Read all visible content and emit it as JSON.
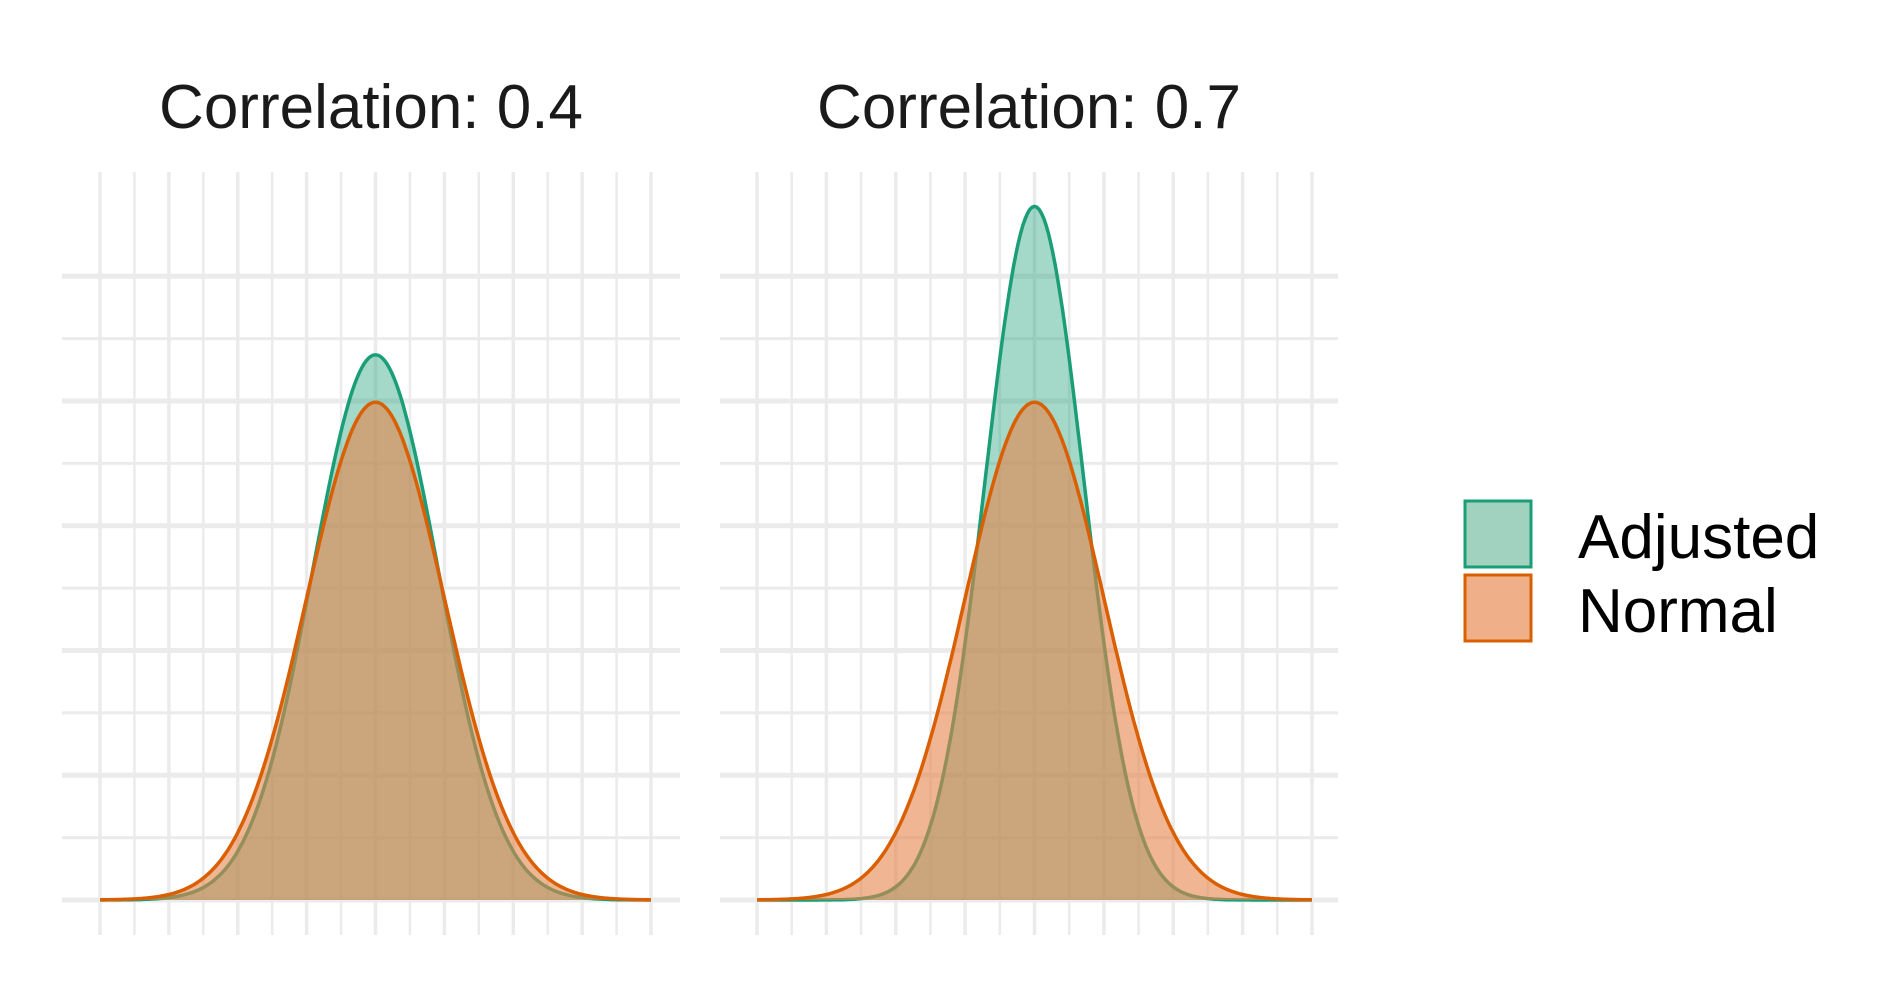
{
  "chart_data": [
    {
      "type": "area",
      "title": "Correlation: 0.4",
      "xlabel": "",
      "ylabel": "",
      "xlim": [
        -4,
        4
      ],
      "ylim": [
        0,
        0.6
      ],
      "grid": true,
      "x_ticks": [
        -4,
        -3,
        -2,
        -1,
        0,
        1,
        2,
        3,
        4
      ],
      "y_ticks": [
        0,
        0.1,
        0.2,
        0.3,
        0.4,
        0.5
      ],
      "series": [
        {
          "name": "Adjusted",
          "sd": 0.91,
          "peak": 0.437
        },
        {
          "name": "Normal",
          "sd": 1.0,
          "peak": 0.399
        }
      ]
    },
    {
      "type": "area",
      "title": "Correlation: 0.7",
      "xlabel": "",
      "ylabel": "",
      "xlim": [
        -4,
        4
      ],
      "ylim": [
        0,
        0.6
      ],
      "grid": true,
      "x_ticks": [
        -4,
        -3,
        -2,
        -1,
        0,
        1,
        2,
        3,
        4
      ],
      "y_ticks": [
        0,
        0.1,
        0.2,
        0.3,
        0.4,
        0.5
      ],
      "series": [
        {
          "name": "Adjusted",
          "sd": 0.71,
          "peak": 0.556
        },
        {
          "name": "Normal",
          "sd": 1.0,
          "peak": 0.399
        }
      ]
    }
  ],
  "legend": {
    "position": "right",
    "items": [
      {
        "label": "Adjusted",
        "fill": "#a1d2bf",
        "stroke": "#1b9e77"
      },
      {
        "label": "Normal",
        "fill": "#efb089",
        "stroke": "#d95f02"
      }
    ]
  },
  "colors": {
    "adjusted_stroke": "#1b9e77",
    "normal_stroke": "#d95f02",
    "adjusted_fill": "#1b9e77",
    "normal_fill": "#e6844a",
    "grid": "#ebebeb"
  }
}
